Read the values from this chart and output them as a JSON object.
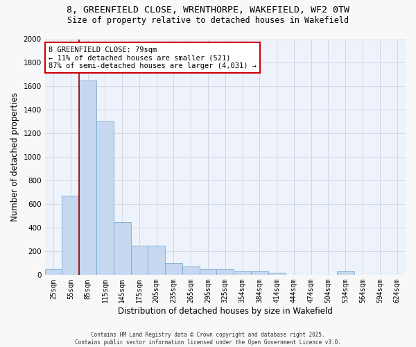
{
  "title_line1": "8, GREENFIELD CLOSE, WRENTHORPE, WAKEFIELD, WF2 0TW",
  "title_line2": "Size of property relative to detached houses in Wakefield",
  "xlabel": "Distribution of detached houses by size in Wakefield",
  "ylabel": "Number of detached properties",
  "categories": [
    "25sqm",
    "55sqm",
    "85sqm",
    "115sqm",
    "145sqm",
    "175sqm",
    "205sqm",
    "235sqm",
    "265sqm",
    "295sqm",
    "325sqm",
    "354sqm",
    "384sqm",
    "414sqm",
    "444sqm",
    "474sqm",
    "504sqm",
    "534sqm",
    "564sqm",
    "594sqm",
    "624sqm"
  ],
  "values": [
    50,
    670,
    1650,
    1300,
    450,
    250,
    250,
    100,
    70,
    50,
    50,
    30,
    30,
    20,
    0,
    0,
    0,
    30,
    0,
    0,
    0
  ],
  "bar_color": "#c5d8f0",
  "bar_edge_color": "#7aaad0",
  "grid_color": "#d0d8e8",
  "background_color": "#eef2fa",
  "vline_color": "#8b0000",
  "vline_x_idx": 2,
  "annotation_text": "8 GREENFIELD CLOSE: 79sqm\n← 11% of detached houses are smaller (521)\n87% of semi-detached houses are larger (4,031) →",
  "annotation_box_color": "#ffffff",
  "annotation_box_edge": "#cc0000",
  "ylim": [
    0,
    2000
  ],
  "yticks": [
    0,
    200,
    400,
    600,
    800,
    1000,
    1200,
    1400,
    1600,
    1800,
    2000
  ],
  "footnote": "Contains HM Land Registry data © Crown copyright and database right 2025.\nContains public sector information licensed under the Open Government Licence v3.0.",
  "fig_bg": "#f8f8f8"
}
